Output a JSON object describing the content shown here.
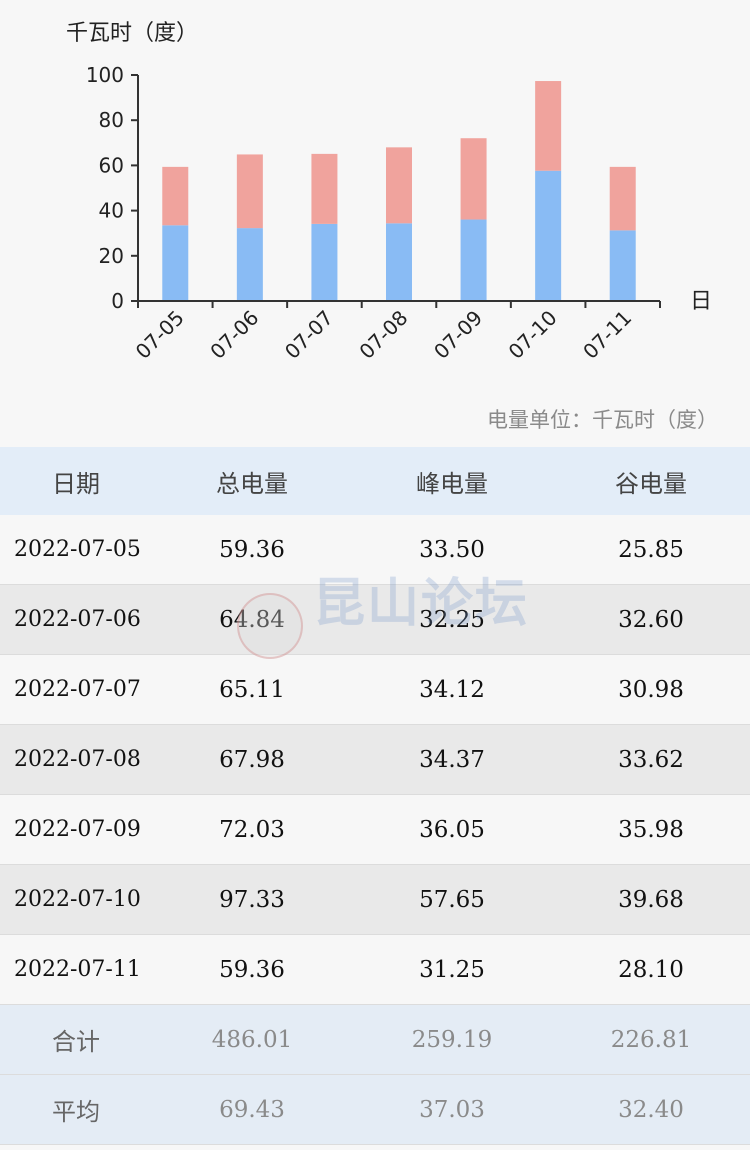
{
  "chart": {
    "unit_label": "千瓦时（度）",
    "x_unit": "日",
    "unit_note": "电量单位：千瓦时（度）"
  },
  "chart_data": {
    "type": "bar",
    "stacked": true,
    "categories": [
      "07-05",
      "07-06",
      "07-07",
      "07-08",
      "07-09",
      "07-10",
      "07-11"
    ],
    "series": [
      {
        "name": "峰电量",
        "values": [
          33.5,
          32.25,
          34.12,
          34.37,
          36.05,
          57.65,
          31.25
        ],
        "color": "#89bbf4"
      },
      {
        "name": "谷电量",
        "values": [
          25.85,
          32.6,
          30.98,
          33.62,
          35.98,
          39.68,
          28.1
        ],
        "color": "#f0a39d"
      }
    ],
    "yticks": [
      "0",
      "20",
      "40",
      "60",
      "80",
      "100"
    ],
    "ylim": [
      0,
      100
    ],
    "ylabel": "千瓦时（度）",
    "xlabel": "日",
    "grid": false
  },
  "table": {
    "headers": [
      "日期",
      "总电量",
      "峰电量",
      "谷电量"
    ],
    "rows": [
      [
        "2022-07-05",
        "59.36",
        "33.50",
        "25.85"
      ],
      [
        "2022-07-06",
        "64.84",
        "32.25",
        "32.60"
      ],
      [
        "2022-07-07",
        "65.11",
        "34.12",
        "30.98"
      ],
      [
        "2022-07-08",
        "67.98",
        "34.37",
        "33.62"
      ],
      [
        "2022-07-09",
        "72.03",
        "36.05",
        "35.98"
      ],
      [
        "2022-07-10",
        "97.33",
        "57.65",
        "39.68"
      ],
      [
        "2022-07-11",
        "59.36",
        "31.25",
        "28.10"
      ]
    ],
    "summary": [
      [
        "合计",
        "486.01",
        "259.19",
        "226.81"
      ],
      [
        "平均",
        "69.43",
        "37.03",
        "32.40"
      ]
    ]
  },
  "watermark": {
    "text": "昆山论坛"
  }
}
